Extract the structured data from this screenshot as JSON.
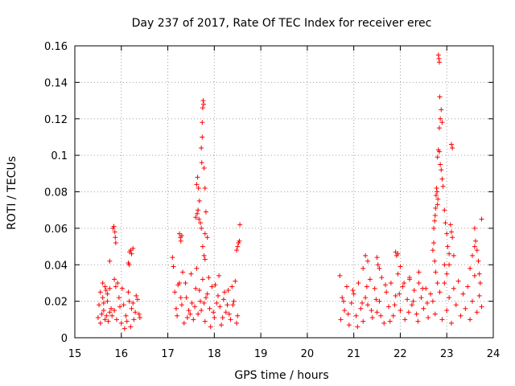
{
  "chart_data": {
    "type": "scatter",
    "title": "Day 237 of 2017, Rate Of TEC Index for receiver erec",
    "xlabel": "GPS time / hours",
    "ylabel": "ROTI / TECUs",
    "xlim": [
      15,
      24
    ],
    "ylim": [
      0,
      0.16
    ],
    "xticks": [
      15,
      16,
      17,
      18,
      19,
      20,
      21,
      22,
      23,
      24
    ],
    "yticks": [
      0,
      0.02,
      0.04,
      0.06,
      0.08,
      0.1,
      0.12,
      0.14,
      0.16
    ],
    "ytick_labels": [
      "0",
      "0.02",
      "0.04",
      "0.06",
      "0.08",
      "0.1",
      "0.12",
      "0.14",
      "0.16"
    ],
    "grid": true,
    "marker": "+",
    "color": "#ff0000",
    "series": [
      {
        "name": "ROTI",
        "points": [
          [
            15.5,
            0.011
          ],
          [
            15.52,
            0.018
          ],
          [
            15.55,
            0.025
          ],
          [
            15.58,
            0.013
          ],
          [
            15.6,
            0.022
          ],
          [
            15.62,
            0.015
          ],
          [
            15.65,
            0.028
          ],
          [
            15.68,
            0.012
          ],
          [
            15.7,
            0.02
          ],
          [
            15.72,
            0.009
          ],
          [
            15.75,
            0.027
          ],
          [
            15.78,
            0.016
          ],
          [
            15.8,
            0.012
          ],
          [
            15.55,
            0.008
          ],
          [
            15.6,
            0.03
          ],
          [
            15.65,
            0.01
          ],
          [
            15.7,
            0.024
          ],
          [
            15.75,
            0.014
          ],
          [
            15.62,
            0.019
          ],
          [
            15.67,
            0.026
          ],
          [
            15.75,
            0.042
          ],
          [
            15.82,
            0.06
          ],
          [
            15.84,
            0.061
          ],
          [
            15.86,
            0.058
          ],
          [
            15.87,
            0.055
          ],
          [
            15.88,
            0.052
          ],
          [
            15.85,
            0.032
          ],
          [
            15.88,
            0.028
          ],
          [
            15.85,
            0.015
          ],
          [
            15.9,
            0.01
          ],
          [
            15.95,
            0.022
          ],
          [
            16.0,
            0.008
          ],
          [
            16.05,
            0.018
          ],
          [
            16.1,
            0.012
          ],
          [
            16.15,
            0.025
          ],
          [
            16.2,
            0.006
          ],
          [
            16.25,
            0.019
          ],
          [
            16.3,
            0.014
          ],
          [
            16.35,
            0.021
          ],
          [
            16.4,
            0.011
          ],
          [
            15.92,
            0.03
          ],
          [
            16.02,
            0.027
          ],
          [
            16.12,
            0.009
          ],
          [
            16.22,
            0.016
          ],
          [
            16.32,
            0.023
          ],
          [
            16.38,
            0.013
          ],
          [
            15.97,
            0.017
          ],
          [
            16.07,
            0.005
          ],
          [
            16.17,
            0.02
          ],
          [
            16.27,
            0.01
          ],
          [
            16.15,
            0.041
          ],
          [
            16.18,
            0.047
          ],
          [
            16.2,
            0.048
          ],
          [
            16.22,
            0.046
          ],
          [
            16.25,
            0.049
          ],
          [
            16.17,
            0.04
          ],
          [
            17.1,
            0.044
          ],
          [
            17.12,
            0.039
          ],
          [
            17.15,
            0.025
          ],
          [
            17.2,
            0.012
          ],
          [
            17.25,
            0.03
          ],
          [
            17.3,
            0.018
          ],
          [
            17.35,
            0.008
          ],
          [
            17.4,
            0.022
          ],
          [
            17.45,
            0.015
          ],
          [
            17.5,
            0.035
          ],
          [
            17.55,
            0.01
          ],
          [
            17.6,
            0.027
          ],
          [
            17.65,
            0.013
          ],
          [
            17.7,
            0.02
          ],
          [
            17.75,
            0.032
          ],
          [
            17.8,
            0.009
          ],
          [
            17.85,
            0.024
          ],
          [
            17.9,
            0.016
          ],
          [
            17.95,
            0.028
          ],
          [
            18.0,
            0.011
          ],
          [
            18.05,
            0.019
          ],
          [
            18.1,
            0.034
          ],
          [
            18.15,
            0.007
          ],
          [
            18.2,
            0.021
          ],
          [
            18.25,
            0.014
          ],
          [
            18.3,
            0.026
          ],
          [
            18.35,
            0.01
          ],
          [
            18.4,
            0.018
          ],
          [
            18.45,
            0.031
          ],
          [
            18.5,
            0.012
          ],
          [
            17.22,
            0.029
          ],
          [
            17.32,
            0.036
          ],
          [
            17.42,
            0.011
          ],
          [
            17.52,
            0.019
          ],
          [
            17.62,
            0.038
          ],
          [
            17.72,
            0.015
          ],
          [
            17.82,
            0.022
          ],
          [
            17.92,
            0.006
          ],
          [
            18.02,
            0.029
          ],
          [
            18.12,
            0.017
          ],
          [
            18.22,
            0.025
          ],
          [
            18.32,
            0.013
          ],
          [
            18.42,
            0.02
          ],
          [
            18.48,
            0.008
          ],
          [
            17.18,
            0.016
          ],
          [
            17.28,
            0.022
          ],
          [
            17.38,
            0.03
          ],
          [
            17.48,
            0.013
          ],
          [
            17.58,
            0.017
          ],
          [
            17.68,
            0.026
          ],
          [
            17.78,
            0.019
          ],
          [
            17.88,
            0.033
          ],
          [
            17.98,
            0.014
          ],
          [
            18.08,
            0.023
          ],
          [
            18.18,
            0.011
          ],
          [
            18.28,
            0.018
          ],
          [
            18.38,
            0.028
          ],
          [
            17.25,
            0.057
          ],
          [
            17.27,
            0.055
          ],
          [
            17.28,
            0.053
          ],
          [
            17.3,
            0.056
          ],
          [
            17.62,
            0.084
          ],
          [
            17.64,
            0.088
          ],
          [
            17.66,
            0.082
          ],
          [
            17.6,
            0.066
          ],
          [
            17.63,
            0.068
          ],
          [
            17.67,
            0.065
          ],
          [
            17.65,
            0.07
          ],
          [
            17.7,
            0.063
          ],
          [
            17.68,
            0.075
          ],
          [
            17.72,
            0.06
          ],
          [
            17.72,
            0.104
          ],
          [
            17.74,
            0.118
          ],
          [
            17.75,
            0.126
          ],
          [
            17.76,
            0.13
          ],
          [
            17.77,
            0.128
          ],
          [
            17.74,
            0.11
          ],
          [
            17.73,
            0.096
          ],
          [
            17.78,
            0.093
          ],
          [
            17.8,
            0.082
          ],
          [
            17.82,
            0.069
          ],
          [
            17.75,
            0.05
          ],
          [
            17.78,
            0.045
          ],
          [
            17.8,
            0.057
          ],
          [
            17.85,
            0.055
          ],
          [
            17.8,
            0.043
          ],
          [
            18.5,
            0.05
          ],
          [
            18.52,
            0.052
          ],
          [
            18.54,
            0.053
          ],
          [
            18.55,
            0.062
          ],
          [
            18.48,
            0.048
          ],
          [
            20.7,
            0.034
          ],
          [
            20.72,
            0.01
          ],
          [
            20.75,
            0.022
          ],
          [
            20.8,
            0.015
          ],
          [
            20.85,
            0.028
          ],
          [
            20.9,
            0.007
          ],
          [
            20.95,
            0.019
          ],
          [
            21.0,
            0.024
          ],
          [
            21.05,
            0.012
          ],
          [
            21.1,
            0.03
          ],
          [
            21.15,
            0.016
          ],
          [
            21.2,
            0.009
          ],
          [
            21.25,
            0.022
          ],
          [
            21.3,
            0.018
          ],
          [
            21.35,
            0.032
          ],
          [
            21.4,
            0.011
          ],
          [
            21.45,
            0.027
          ],
          [
            21.5,
            0.014
          ],
          [
            21.55,
            0.02
          ],
          [
            21.6,
            0.033
          ],
          [
            21.65,
            0.008
          ],
          [
            21.7,
            0.025
          ],
          [
            21.75,
            0.017
          ],
          [
            21.8,
            0.03
          ],
          [
            21.85,
            0.012
          ],
          [
            21.9,
            0.023
          ],
          [
            21.95,
            0.035
          ],
          [
            22.0,
            0.015
          ],
          [
            22.05,
            0.028
          ],
          [
            22.1,
            0.01
          ],
          [
            22.15,
            0.021
          ],
          [
            22.2,
            0.032
          ],
          [
            22.25,
            0.018
          ],
          [
            22.3,
            0.026
          ],
          [
            22.35,
            0.013
          ],
          [
            22.4,
            0.03
          ],
          [
            22.45,
            0.022
          ],
          [
            22.5,
            0.016
          ],
          [
            22.55,
            0.027
          ],
          [
            22.6,
            0.011
          ],
          [
            22.65,
            0.024
          ],
          [
            20.78,
            0.02
          ],
          [
            20.88,
            0.013
          ],
          [
            20.98,
            0.026
          ],
          [
            21.08,
            0.006
          ],
          [
            21.18,
            0.019
          ],
          [
            21.28,
            0.028
          ],
          [
            21.38,
            0.015
          ],
          [
            21.48,
            0.021
          ],
          [
            21.58,
            0.012
          ],
          [
            21.68,
            0.029
          ],
          [
            21.78,
            0.009
          ],
          [
            21.88,
            0.018
          ],
          [
            21.98,
            0.024
          ],
          [
            22.08,
            0.03
          ],
          [
            22.18,
            0.014
          ],
          [
            22.28,
            0.02
          ],
          [
            22.38,
            0.009
          ],
          [
            22.48,
            0.027
          ],
          [
            22.58,
            0.019
          ],
          [
            21.2,
            0.038
          ],
          [
            21.25,
            0.045
          ],
          [
            21.3,
            0.042
          ],
          [
            21.5,
            0.044
          ],
          [
            21.52,
            0.04
          ],
          [
            21.55,
            0.038
          ],
          [
            21.9,
            0.047
          ],
          [
            21.92,
            0.045
          ],
          [
            21.95,
            0.046
          ],
          [
            22.0,
            0.039
          ],
          [
            22.2,
            0.033
          ],
          [
            22.4,
            0.036
          ],
          [
            22.7,
            0.048
          ],
          [
            22.72,
            0.06
          ],
          [
            22.74,
            0.064
          ],
          [
            22.75,
            0.067
          ],
          [
            22.76,
            0.071
          ],
          [
            22.77,
            0.078
          ],
          [
            22.78,
            0.082
          ],
          [
            22.79,
            0.08
          ],
          [
            22.8,
            0.073
          ],
          [
            22.81,
            0.076
          ],
          [
            22.72,
            0.052
          ],
          [
            22.74,
            0.042
          ],
          [
            22.76,
            0.036
          ],
          [
            22.8,
            0.099
          ],
          [
            22.82,
            0.103
          ],
          [
            22.84,
            0.102
          ],
          [
            22.86,
            0.095
          ],
          [
            22.88,
            0.092
          ],
          [
            22.9,
            0.087
          ],
          [
            22.92,
            0.083
          ],
          [
            22.84,
            0.115
          ],
          [
            22.86,
            0.12
          ],
          [
            22.88,
            0.125
          ],
          [
            22.85,
            0.132
          ],
          [
            22.9,
            0.118
          ],
          [
            22.82,
            0.155
          ],
          [
            22.83,
            0.153
          ],
          [
            22.84,
            0.151
          ],
          [
            22.95,
            0.07
          ],
          [
            22.97,
            0.063
          ],
          [
            23.0,
            0.057
          ],
          [
            23.02,
            0.05
          ],
          [
            23.05,
            0.046
          ],
          [
            22.95,
            0.04
          ],
          [
            23.0,
            0.035
          ],
          [
            23.05,
            0.04
          ],
          [
            23.1,
            0.106
          ],
          [
            23.12,
            0.104
          ],
          [
            23.08,
            0.062
          ],
          [
            23.1,
            0.058
          ],
          [
            23.12,
            0.055
          ],
          [
            23.15,
            0.045
          ],
          [
            22.85,
            0.025
          ],
          [
            22.9,
            0.01
          ],
          [
            22.95,
            0.03
          ],
          [
            23.0,
            0.015
          ],
          [
            23.05,
            0.022
          ],
          [
            23.1,
            0.008
          ],
          [
            23.15,
            0.027
          ],
          [
            23.2,
            0.018
          ],
          [
            23.25,
            0.031
          ],
          [
            23.3,
            0.012
          ],
          [
            23.35,
            0.024
          ],
          [
            23.4,
            0.016
          ],
          [
            23.45,
            0.028
          ],
          [
            23.5,
            0.01
          ],
          [
            23.55,
            0.02
          ],
          [
            23.6,
            0.034
          ],
          [
            23.65,
            0.014
          ],
          [
            23.7,
            0.023
          ],
          [
            23.75,
            0.017
          ],
          [
            22.7,
            0.02
          ],
          [
            22.75,
            0.013
          ],
          [
            22.8,
            0.03
          ],
          [
            23.5,
            0.038
          ],
          [
            23.55,
            0.045
          ],
          [
            23.6,
            0.05
          ],
          [
            23.62,
            0.053
          ],
          [
            23.65,
            0.048
          ],
          [
            23.68,
            0.042
          ],
          [
            23.7,
            0.035
          ],
          [
            23.72,
            0.03
          ],
          [
            23.75,
            0.065
          ],
          [
            23.6,
            0.06
          ]
        ]
      }
    ]
  }
}
